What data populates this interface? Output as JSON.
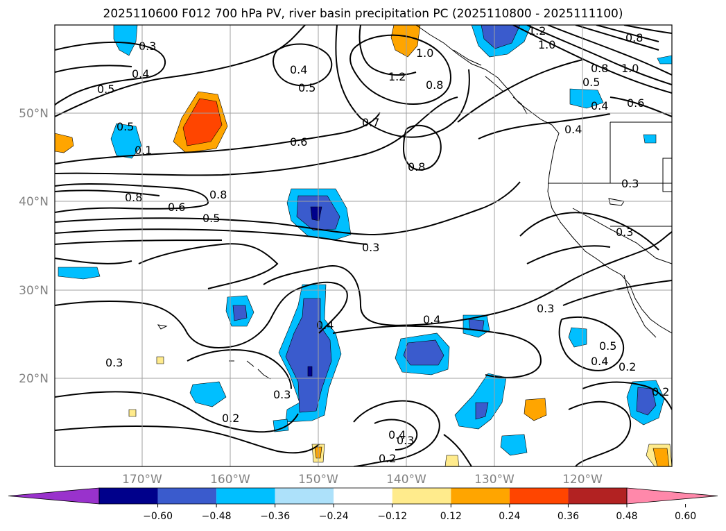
{
  "title": "2025110600 F012 700 hPa PV, river basin precipitation PC (2025110800 - 2025111100)",
  "lat_labels": [
    "50°N",
    "40°N",
    "30°N",
    "20°N"
  ],
  "lon_labels": [
    "170°W",
    "160°W",
    "150°W",
    "140°W",
    "130°W",
    "120°W"
  ],
  "contour_labels": [
    "0.3",
    "0.4",
    "0.5",
    "0.5",
    "0.1",
    "0.8",
    "0.6",
    "0.5",
    "0.8",
    "0.4",
    "0.5",
    "1.2",
    "0.7",
    "0.6",
    "0.8",
    "0.8",
    "1.0",
    "1.2",
    "1.0",
    "0.8",
    "0.5",
    "0.4",
    "0.6",
    "0.8",
    "1.0",
    "0.4",
    "0.3",
    "0.3",
    "0.3",
    "0.4",
    "0.4",
    "0.3",
    "0.2",
    "0.5",
    "0.4",
    "0.2",
    "0.3",
    "0.3",
    "0.2",
    "0.4",
    "0.3",
    "0.2"
  ],
  "colorbar": {
    "ticks": [
      "−0.60",
      "−0.48",
      "−0.36",
      "−0.24",
      "−0.12",
      "0.12",
      "0.24",
      "0.36",
      "0.48",
      "0.60"
    ],
    "colors": [
      "#9932CC",
      "#00008B",
      "#3A5BCD",
      "#00BFFF",
      "#ADE1FA",
      "#FFFFFF",
      "#FFEB8C",
      "#FFA500",
      "#FF4500",
      "#B22222",
      "#FF88AA"
    ]
  }
}
